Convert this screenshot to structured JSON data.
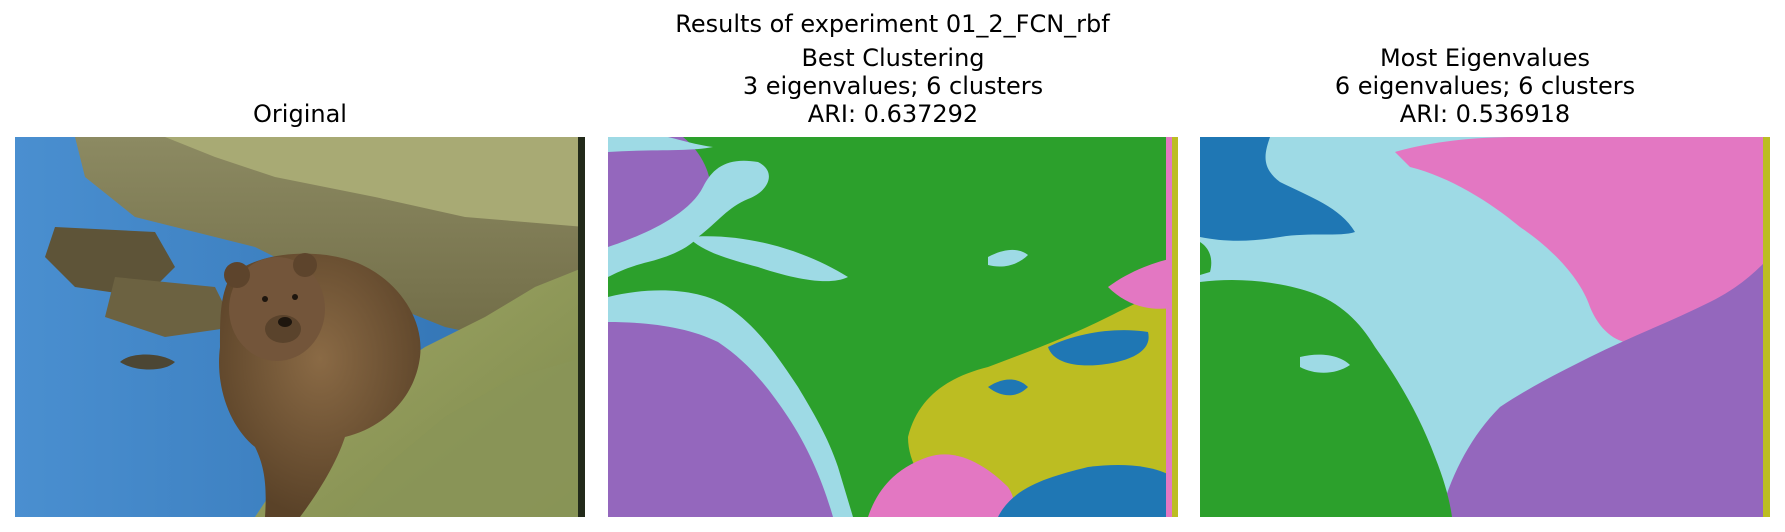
{
  "figure": {
    "suptitle": "Results of experiment 01_2_FCN_rbf"
  },
  "panels": [
    {
      "title_lines": [
        "Original"
      ],
      "content": "photo"
    },
    {
      "title_lines": [
        "Best Clustering",
        "3 eigenvalues; 6 clusters",
        "ARI: 0.637292"
      ],
      "content": "segmentation"
    },
    {
      "title_lines": [
        "Most Eigenvalues",
        "6 eigenvalues; 6 clusters",
        "ARI: 0.536918"
      ],
      "content": "segmentation"
    }
  ],
  "palette": {
    "blue": "#1f77b4",
    "green": "#2ca02c",
    "purple": "#9467bd",
    "pink": "#e377c2",
    "olive": "#bcbd22",
    "cyan": "#9edae5"
  },
  "photo_colors": {
    "water": "#3f86c9",
    "grass": "#8f9a5c",
    "bank": "#6d5d3e",
    "bear": "#6b4f32",
    "sky_grass": "#a4a872"
  }
}
